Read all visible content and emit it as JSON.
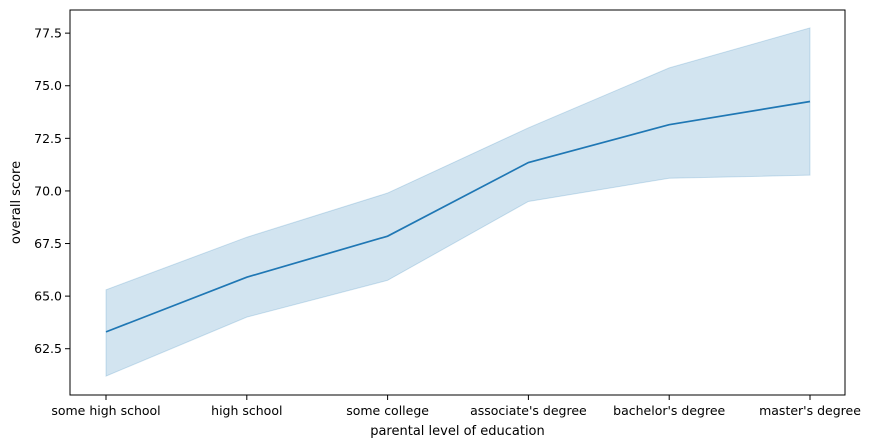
{
  "chart_data": {
    "type": "line",
    "title": "",
    "xlabel": "parental level of education",
    "ylabel": "overall score",
    "categories": [
      "some high school",
      "high school",
      "some college",
      "associate's degree",
      "bachelor's degree",
      "master's degree"
    ],
    "series": [
      {
        "values": [
          63.3,
          65.9,
          67.85,
          71.35,
          73.15,
          74.25
        ],
        "ci_lower": [
          61.2,
          64.0,
          65.75,
          69.5,
          70.6,
          70.75
        ],
        "ci_upper": [
          65.3,
          67.8,
          69.9,
          73.0,
          75.85,
          77.75
        ],
        "color": "#1f77b4"
      }
    ],
    "ylim": [
      60.3,
      78.6
    ],
    "yticks": [
      62.5,
      65.0,
      67.5,
      70.0,
      72.5,
      75.0,
      77.5
    ],
    "ytick_labels": [
      "62.5",
      "65.0",
      "67.5",
      "70.0",
      "72.5",
      "75.0",
      "77.5"
    ],
    "grid": false,
    "legend": false,
    "band_color": "#1f77b4"
  }
}
